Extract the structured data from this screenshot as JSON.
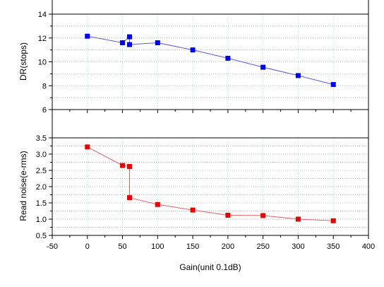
{
  "chart_data": {
    "type": "scatter",
    "x_axis": {
      "label": "Gain(unit 0.1dB)",
      "range": [
        -50,
        400
      ],
      "ticks": [
        -50,
        0,
        50,
        100,
        150,
        200,
        250,
        300,
        350,
        400
      ],
      "tick_labels": [
        "-50",
        "0",
        "50",
        "100",
        "150",
        "200",
        "250",
        "300",
        "350",
        "400"
      ]
    },
    "panels": [
      {
        "id": "dr",
        "ylabel": "DR(stops)",
        "ylim": [
          6,
          14
        ],
        "yticks": [
          6,
          8,
          10,
          12,
          14
        ],
        "ytick_labels": [
          "6",
          "8",
          "10",
          "12",
          "14"
        ],
        "grid": true,
        "marker": "square",
        "marker_color": "#0000ff",
        "line_color": "#5a5ad8",
        "points": [
          [
            0,
            12.15
          ],
          [
            50,
            11.6
          ],
          [
            60,
            12.1
          ],
          [
            60,
            11.45
          ],
          [
            100,
            11.6
          ],
          [
            150,
            11.0
          ],
          [
            200,
            10.3
          ],
          [
            250,
            9.55
          ],
          [
            300,
            8.85
          ],
          [
            350,
            8.1
          ]
        ]
      },
      {
        "id": "read-noise",
        "ylabel": "Read noise(e-rms)",
        "ylim": [
          0.5,
          3.5
        ],
        "yticks": [
          0.5,
          1.0,
          1.5,
          2.0,
          2.5,
          3.0,
          3.5
        ],
        "ytick_labels": [
          "0.5",
          "1.0",
          "1.5",
          "2.0",
          "2.5",
          "3.0",
          "3.5"
        ],
        "grid": true,
        "marker": "square",
        "marker_color": "#ee0000",
        "line_color": "#e06060",
        "points": [
          [
            0,
            3.22
          ],
          [
            50,
            2.65
          ],
          [
            60,
            2.62
          ],
          [
            60,
            1.66
          ],
          [
            100,
            1.45
          ],
          [
            150,
            1.28
          ],
          [
            200,
            1.12
          ],
          [
            250,
            1.11
          ],
          [
            300,
            1.0
          ],
          [
            350,
            0.95
          ]
        ]
      }
    ]
  }
}
